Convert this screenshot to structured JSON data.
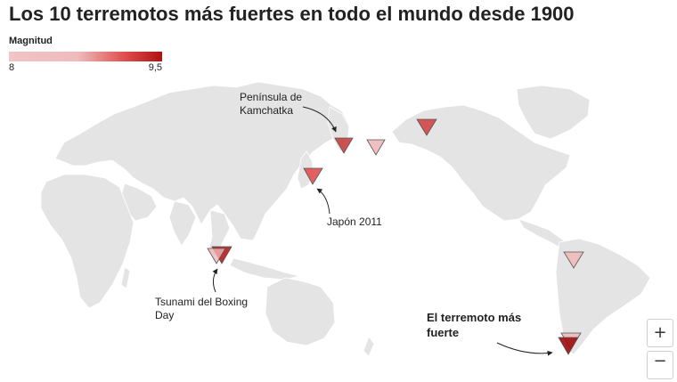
{
  "title": "Los 10 terremotos más fuertes en todo el mundo desde 1900",
  "legend": {
    "title": "Magnitud",
    "min_label": "8",
    "max_label": "9,5",
    "color_low": "#f2c4c4",
    "color_high": "#b01010"
  },
  "annotations": {
    "kamchatka_line1": "Península de",
    "kamchatka_line2": "Kamchatka",
    "japan": "Japón 2011",
    "tsunami_line1": "Tsunami del Boxing",
    "tsunami_line2": "Day",
    "strongest_line1": "El terremoto más",
    "strongest_line2": "fuerte"
  },
  "controls": {
    "zoom_in": "+",
    "zoom_out": "−"
  },
  "colors": {
    "land": "#e4e4e4",
    "border": "#ffffff",
    "ocean": "#ffffff"
  }
}
